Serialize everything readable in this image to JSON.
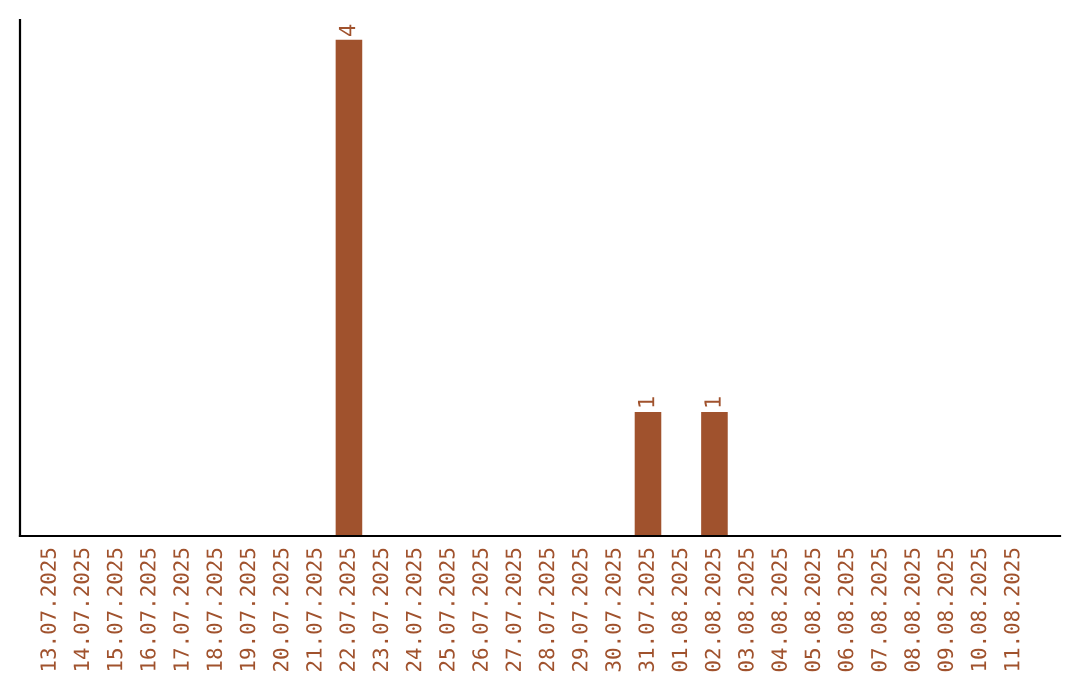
{
  "chart_data": {
    "type": "bar",
    "categories": [
      "13.07.2025",
      "14.07.2025",
      "15.07.2025",
      "16.07.2025",
      "17.07.2025",
      "18.07.2025",
      "19.07.2025",
      "20.07.2025",
      "21.07.2025",
      "22.07.2025",
      "23.07.2025",
      "24.07.2025",
      "25.07.2025",
      "26.07.2025",
      "27.07.2025",
      "28.07.2025",
      "29.07.2025",
      "30.07.2025",
      "31.07.2025",
      "01.08.2025",
      "02.08.2025",
      "03.08.2025",
      "04.08.2025",
      "05.08.2025",
      "06.08.2025",
      "07.08.2025",
      "08.08.2025",
      "09.08.2025",
      "10.08.2025",
      "11.08.2025"
    ],
    "values": [
      0,
      0,
      0,
      0,
      0,
      0,
      0,
      0,
      0,
      4,
      0,
      0,
      0,
      0,
      0,
      0,
      0,
      0,
      1,
      0,
      1,
      0,
      0,
      0,
      0,
      0,
      0,
      0,
      0,
      0
    ],
    "value_labels": [
      null,
      null,
      null,
      null,
      null,
      null,
      null,
      null,
      null,
      "4",
      null,
      null,
      null,
      null,
      null,
      null,
      null,
      null,
      "1",
      null,
      "1",
      null,
      null,
      null,
      null,
      null,
      null,
      null,
      null,
      null
    ],
    "color": "#a0522d",
    "grid": false,
    "legend": false,
    "tick_labels": "x"
  }
}
